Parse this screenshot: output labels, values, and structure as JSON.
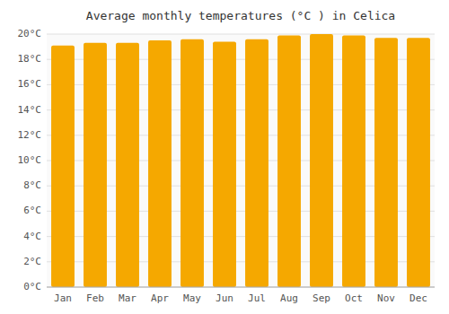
{
  "chart_data": {
    "type": "bar",
    "title": "Average monthly temperatures (°C ) in Celica",
    "categories": [
      "Jan",
      "Feb",
      "Mar",
      "Apr",
      "May",
      "Jun",
      "Jul",
      "Aug",
      "Sep",
      "Oct",
      "Nov",
      "Dec"
    ],
    "values": [
      19.1,
      19.3,
      19.3,
      19.5,
      19.6,
      19.4,
      19.6,
      19.9,
      20.0,
      19.9,
      19.7,
      19.7
    ],
    "color": "#F5A800",
    "ylim": [
      0,
      20
    ],
    "yticks": [
      {
        "value": 0,
        "label": "0°C"
      },
      {
        "value": 2,
        "label": "2°C"
      },
      {
        "value": 4,
        "label": "4°C"
      },
      {
        "value": 6,
        "label": "6°C"
      },
      {
        "value": 8,
        "label": "8°C"
      },
      {
        "value": 10,
        "label": "10°C"
      },
      {
        "value": 12,
        "label": "12°C"
      },
      {
        "value": 14,
        "label": "14°C"
      },
      {
        "value": 16,
        "label": "16°C"
      },
      {
        "value": 18,
        "label": "18°C"
      },
      {
        "value": 20,
        "label": "20°C"
      }
    ],
    "grid": true
  }
}
